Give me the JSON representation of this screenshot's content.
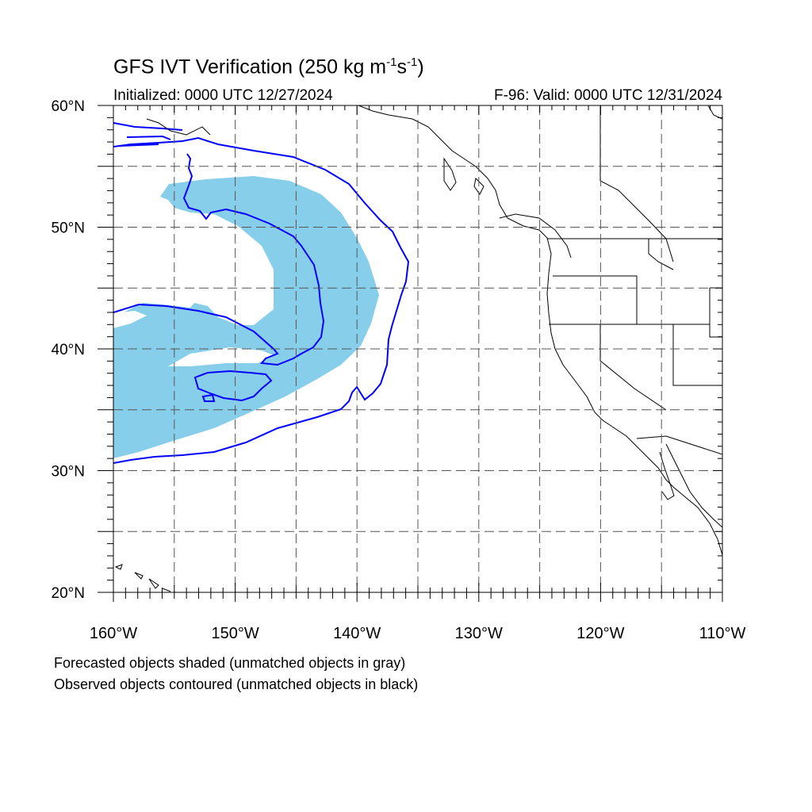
{
  "title": {
    "main": "GFS IVT Verification (250 kg m",
    "exp1": "-1",
    "mid": "s",
    "exp2": "-1",
    "end": ")"
  },
  "subtitle_left": "Initialized: 0000 UTC 12/27/2024",
  "subtitle_right": "F-96: Valid: 0000 UTC 12/31/2024",
  "map": {
    "lon_range": [
      -160,
      -110
    ],
    "lat_range": [
      20,
      60
    ],
    "lon_ticks": [
      {
        "value": -160,
        "label": "160°W"
      },
      {
        "value": -150,
        "label": "150°W"
      },
      {
        "value": -140,
        "label": "140°W"
      },
      {
        "value": -130,
        "label": "130°W"
      },
      {
        "value": -120,
        "label": "120°W"
      },
      {
        "value": -110,
        "label": "110°W"
      }
    ],
    "lat_ticks": [
      {
        "value": 20,
        "label": "20°N"
      },
      {
        "value": 30,
        "label": "30°N"
      },
      {
        "value": 40,
        "label": "40°N"
      },
      {
        "value": 50,
        "label": "50°N"
      },
      {
        "value": 60,
        "label": "60°N"
      }
    ],
    "gridline_spacing_deg": 5,
    "gridlines": "dashed",
    "forecast_fill_color": "#87ceeb",
    "observed_contour_color": "#0000ff",
    "coastline_color": "#000000"
  },
  "legend": {
    "line1": "Forecasted objects shaded (unmatched objects in gray)",
    "line2": "Observed objects contoured (unmatched objects in black)"
  }
}
